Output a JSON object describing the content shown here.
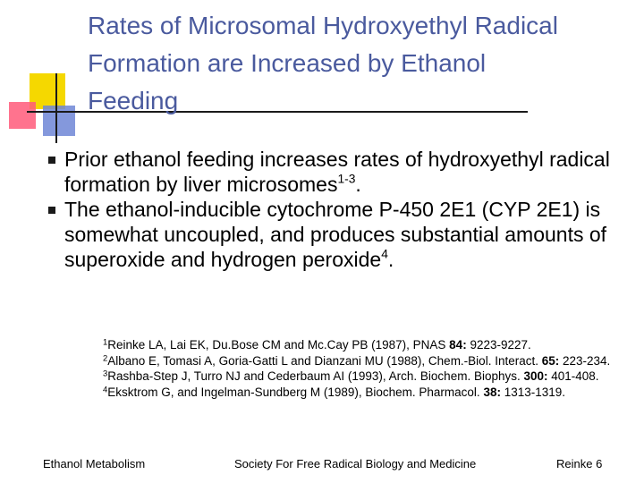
{
  "slide": {
    "title_lines": [
      "Rates of Microsomal Hydroxyethyl Radical",
      "Formation are Increased by Ethanol",
      "Feeding"
    ],
    "bullets": [
      {
        "text": "Prior ethanol feeding increases rates of hydroxyethyl radical formation by liver microsomes",
        "sup": "1-3",
        "tail": "."
      },
      {
        "text": "The ethanol-inducible cytochrome P-450 2E1 (CYP 2E1) is somewhat uncoupled, and produces substantial amounts of superoxide and hydrogen peroxide",
        "sup": "4",
        "tail": "."
      }
    ],
    "references": [
      {
        "num": "1",
        "pre": "Reinke LA, Lai EK, Du.Bose CM and Mc.Cay PB (1987), PNAS ",
        "vol": "84:",
        "post": " 9223-9227."
      },
      {
        "num": "2",
        "pre": "Albano E, Tomasi A, Goria-Gatti L and Dianzani MU (1988), Chem.-Biol. Interact. ",
        "vol": "65:",
        "post": " 223-234."
      },
      {
        "num": "3",
        "pre": "Rashba-Step J, Turro NJ and Cederbaum AI (1993), Arch. Biochem. Biophys. ",
        "vol": "300:",
        "post": " 401-408."
      },
      {
        "num": "4",
        "pre": "Eksktrom G, and Ingelman-Sundberg M (1989), Biochem. Pharmacol. ",
        "vol": "38:",
        "post": " 1313-1319."
      }
    ],
    "footer": {
      "left": "Ethanol Metabolism",
      "center": "Society For Free Radical Biology and Medicine",
      "right": "Reinke 6"
    }
  },
  "colors": {
    "title": "#4a5a9e",
    "deco_yellow": "#f5d800",
    "deco_red": "#ff5a7a",
    "deco_blue": "#6e86d6"
  }
}
